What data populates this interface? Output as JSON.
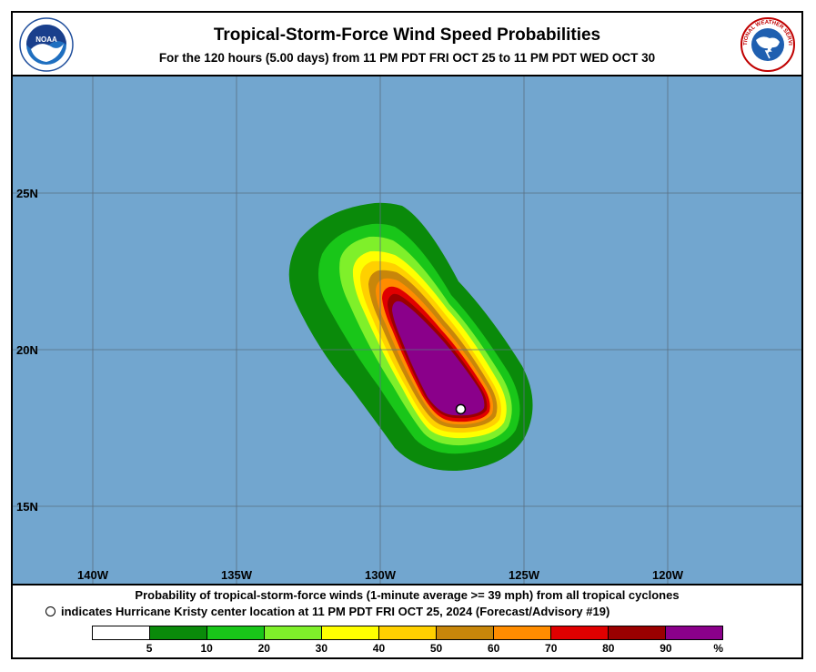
{
  "header": {
    "title": "Tropical-Storm-Force Wind Speed Probabilities",
    "subtitle": "For the 120 hours (5.00 days) from 11 PM PDT FRI OCT 25 to 11 PM PDT WED OCT 30"
  },
  "logos": {
    "left_name": "noaa-logo",
    "left_text": "NOAA",
    "right_name": "nws-logo",
    "right_text": "NATIONAL WEATHER SERVICE"
  },
  "map": {
    "ocean_color": "#72a6cf",
    "grid_color": "#5a6f82",
    "lon_labels": [
      "140W",
      "135W",
      "130W",
      "125W",
      "120W"
    ],
    "lat_labels": [
      "25N",
      "20N",
      "15N"
    ],
    "storm_center": {
      "lon": -127.2,
      "lat": 18.1
    }
  },
  "footer": {
    "caption1": "Probability of tropical-storm-force winds (1-minute average >= 39 mph) from all tropical cyclones",
    "caption2": "indicates Hurricane Kristy center location at 11 PM PDT FRI OCT 25, 2024 (Forecast/Advisory #19)"
  },
  "legend": {
    "colors": [
      "#ffffff",
      "#0a8a0a",
      "#19c619",
      "#7ff02a",
      "#ffff00",
      "#ffd000",
      "#c8860a",
      "#ff8c00",
      "#e00000",
      "#9a0000",
      "#8a008a"
    ],
    "ticks": [
      "5",
      "10",
      "20",
      "30",
      "40",
      "50",
      "60",
      "70",
      "80",
      "90",
      "%"
    ]
  }
}
